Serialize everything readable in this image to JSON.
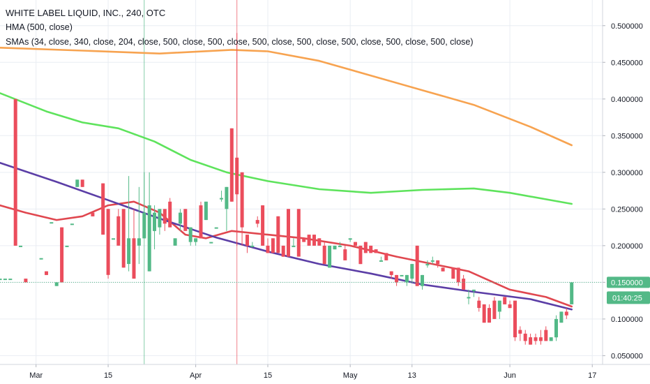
{
  "header": {
    "title": "WHITE LABEL LIQUID, INC., 240, OTC",
    "hma_label": "HMA (500, close)",
    "smas_label": "SMAs (34, close, 340, close, 204, close, 500, close, 500, close, 500, close, 500, close, 500, close, 500, close, 500, close)"
  },
  "colors": {
    "up": "#53b987",
    "down": "#eb4d5c",
    "sma_orange": "#f7a350",
    "sma_green": "#5ee35c",
    "sma_red": "#e0474f",
    "hma_purple": "#5b3ea6",
    "price_line": "#53b987",
    "grid": "#e9edf3"
  },
  "chart_data": {
    "type": "candlestick",
    "y_axis": {
      "ticks": [
        "0.500000",
        "0.450000",
        "0.400000",
        "0.350000",
        "0.300000",
        "0.250000",
        "0.200000",
        "0.150000",
        "0.100000",
        "0.050000"
      ],
      "tick_values": [
        0.5,
        0.45,
        0.4,
        0.35,
        0.3,
        0.25,
        0.2,
        0.15,
        0.1,
        0.05
      ],
      "range": [
        0.038,
        0.535
      ]
    },
    "x_axis": {
      "ticks": [
        "Mar",
        "15",
        "Apr",
        "15",
        "May",
        "13",
        "Jun",
        "17"
      ],
      "range": [
        "Feb 23",
        "Jun 19"
      ]
    },
    "last_price": {
      "value": 0.15,
      "label": "0.150000",
      "countdown": "01:40:25"
    },
    "candles": [
      {
        "d": "Feb 23",
        "o": 0.155,
        "h": 0.155,
        "l": 0.155,
        "c": 0.155
      },
      {
        "d": "Feb 24",
        "o": 0.155,
        "h": 0.155,
        "l": 0.155,
        "c": 0.155
      },
      {
        "d": "Feb 25",
        "o": 0.155,
        "h": 0.155,
        "l": 0.155,
        "c": 0.155
      },
      {
        "d": "Feb 26",
        "o": 0.4,
        "h": 0.4,
        "l": 0.2,
        "c": 0.2
      },
      {
        "d": "Feb 27",
        "o": 0.2,
        "h": 0.2,
        "l": 0.2,
        "c": 0.2
      },
      {
        "d": "Feb 28",
        "o": 0.155,
        "h": 0.155,
        "l": 0.15,
        "c": 0.15
      },
      {
        "d": "Mar 2",
        "o": 0.183,
        "h": 0.183,
        "l": 0.183,
        "c": 0.183
      },
      {
        "d": "Mar 3",
        "o": 0.165,
        "h": 0.165,
        "l": 0.16,
        "c": 0.16
      },
      {
        "d": "Mar 4",
        "o": 0.232,
        "h": 0.232,
        "l": 0.232,
        "c": 0.232
      },
      {
        "d": "Mar 5",
        "o": 0.145,
        "h": 0.15,
        "l": 0.145,
        "c": 0.15
      },
      {
        "d": "Mar 6",
        "o": 0.225,
        "h": 0.225,
        "l": 0.15,
        "c": 0.15
      },
      {
        "d": "Mar 7",
        "o": 0.2,
        "h": 0.2,
        "l": 0.2,
        "c": 0.2
      },
      {
        "d": "Mar 8",
        "o": 0.23,
        "h": 0.23,
        "l": 0.23,
        "c": 0.23
      },
      {
        "d": "Mar 9",
        "o": 0.28,
        "h": 0.29,
        "l": 0.28,
        "c": 0.29
      },
      {
        "d": "Mar 10",
        "o": 0.29,
        "h": 0.29,
        "l": 0.28,
        "c": 0.28
      },
      {
        "d": "Mar 12",
        "o": 0.245,
        "h": 0.245,
        "l": 0.24,
        "c": 0.24
      },
      {
        "d": "Mar 14",
        "o": 0.285,
        "h": 0.285,
        "l": 0.215,
        "c": 0.215
      },
      {
        "d": "Mar 15",
        "o": 0.25,
        "h": 0.25,
        "l": 0.155,
        "c": 0.16
      },
      {
        "d": "Mar 16",
        "o": 0.21,
        "h": 0.21,
        "l": 0.21,
        "c": 0.21
      },
      {
        "d": "Mar 17",
        "o": 0.24,
        "h": 0.25,
        "l": 0.2,
        "c": 0.2
      },
      {
        "d": "Mar 18",
        "o": 0.25,
        "h": 0.25,
        "l": 0.17,
        "c": 0.17
      },
      {
        "d": "Mar 19",
        "o": 0.175,
        "h": 0.295,
        "l": 0.165,
        "c": 0.21
      },
      {
        "d": "Mar 20",
        "o": 0.21,
        "h": 0.25,
        "l": 0.155,
        "c": 0.155
      },
      {
        "d": "Mar 21",
        "o": 0.2,
        "h": 0.28,
        "l": 0.175,
        "c": 0.21
      },
      {
        "d": "Mar 22",
        "o": 0.21,
        "h": 0.3,
        "l": 0.21,
        "c": 0.245
      },
      {
        "d": "Mar 23",
        "o": 0.165,
        "h": 0.3,
        "l": 0.165,
        "c": 0.255
      },
      {
        "d": "Mar 24",
        "o": 0.22,
        "h": 0.255,
        "l": 0.195,
        "c": 0.245
      },
      {
        "d": "Mar 25",
        "o": 0.225,
        "h": 0.25,
        "l": 0.215,
        "c": 0.25
      },
      {
        "d": "Mar 26",
        "o": 0.25,
        "h": 0.25,
        "l": 0.22,
        "c": 0.23
      },
      {
        "d": "Mar 27",
        "o": 0.26,
        "h": 0.265,
        "l": 0.225,
        "c": 0.225
      },
      {
        "d": "Mar 28",
        "o": 0.2,
        "h": 0.21,
        "l": 0.2,
        "c": 0.21
      },
      {
        "d": "Mar 29",
        "o": 0.23,
        "h": 0.25,
        "l": 0.22,
        "c": 0.245
      },
      {
        "d": "Mar 30",
        "o": 0.25,
        "h": 0.25,
        "l": 0.22,
        "c": 0.22
      },
      {
        "d": "Mar 31",
        "o": 0.205,
        "h": 0.225,
        "l": 0.2,
        "c": 0.225
      },
      {
        "d": "Apr 1",
        "o": 0.205,
        "h": 0.21,
        "l": 0.2,
        "c": 0.21
      },
      {
        "d": "Apr 2",
        "o": 0.255,
        "h": 0.26,
        "l": 0.21,
        "c": 0.21
      },
      {
        "d": "Apr 3",
        "o": 0.235,
        "h": 0.26,
        "l": 0.235,
        "c": 0.26
      },
      {
        "d": "Apr 4",
        "o": 0.205,
        "h": 0.205,
        "l": 0.205,
        "c": 0.205
      },
      {
        "d": "Apr 5",
        "o": 0.225,
        "h": 0.225,
        "l": 0.225,
        "c": 0.225
      },
      {
        "d": "Apr 6",
        "o": 0.265,
        "h": 0.275,
        "l": 0.26,
        "c": 0.265
      },
      {
        "d": "Apr 7",
        "o": 0.25,
        "h": 0.28,
        "l": 0.22,
        "c": 0.28
      },
      {
        "d": "Apr 8",
        "o": 0.36,
        "h": 0.36,
        "l": 0.26,
        "c": 0.26
      },
      {
        "d": "Apr 9",
        "o": 0.32,
        "h": 0.49,
        "l": 0.2,
        "c": 0.27
      },
      {
        "d": "Apr 10",
        "o": 0.3,
        "h": 0.3,
        "l": 0.2,
        "c": 0.225
      },
      {
        "d": "Apr 11",
        "o": 0.215,
        "h": 0.215,
        "l": 0.19,
        "c": 0.2
      },
      {
        "d": "Apr 12",
        "o": 0.2,
        "h": 0.205,
        "l": 0.2,
        "c": 0.2
      },
      {
        "d": "Apr 13",
        "o": 0.235,
        "h": 0.24,
        "l": 0.225,
        "c": 0.23
      },
      {
        "d": "Apr 14",
        "o": 0.255,
        "h": 0.255,
        "l": 0.2,
        "c": 0.2
      },
      {
        "d": "Apr 15",
        "o": 0.2,
        "h": 0.21,
        "l": 0.19,
        "c": 0.19
      },
      {
        "d": "Apr 16",
        "o": 0.21,
        "h": 0.21,
        "l": 0.19,
        "c": 0.19
      },
      {
        "d": "Apr 17",
        "o": 0.24,
        "h": 0.24,
        "l": 0.19,
        "c": 0.19
      },
      {
        "d": "Apr 18",
        "o": 0.2,
        "h": 0.2,
        "l": 0.185,
        "c": 0.185
      },
      {
        "d": "Apr 19",
        "o": 0.25,
        "h": 0.25,
        "l": 0.185,
        "c": 0.185
      },
      {
        "d": "Apr 20",
        "o": 0.2,
        "h": 0.21,
        "l": 0.2,
        "c": 0.2
      },
      {
        "d": "Apr 21",
        "o": 0.25,
        "h": 0.25,
        "l": 0.185,
        "c": 0.185
      },
      {
        "d": "Apr 22",
        "o": 0.21,
        "h": 0.21,
        "l": 0.205,
        "c": 0.205
      },
      {
        "d": "Apr 23",
        "o": 0.215,
        "h": 0.215,
        "l": 0.2,
        "c": 0.2
      },
      {
        "d": "Apr 24",
        "o": 0.215,
        "h": 0.215,
        "l": 0.2,
        "c": 0.2
      },
      {
        "d": "Apr 25",
        "o": 0.21,
        "h": 0.21,
        "l": 0.2,
        "c": 0.2
      },
      {
        "d": "Apr 26",
        "o": 0.2,
        "h": 0.205,
        "l": 0.175,
        "c": 0.175
      },
      {
        "d": "Apr 27",
        "o": 0.17,
        "h": 0.2,
        "l": 0.17,
        "c": 0.2
      },
      {
        "d": "Apr 28",
        "o": 0.195,
        "h": 0.2,
        "l": 0.195,
        "c": 0.2
      },
      {
        "d": "Apr 29",
        "o": 0.2,
        "h": 0.205,
        "l": 0.2,
        "c": 0.2
      },
      {
        "d": "Apr 30",
        "o": 0.195,
        "h": 0.2,
        "l": 0.18,
        "c": 0.18
      },
      {
        "d": "May 1",
        "o": 0.21,
        "h": 0.21,
        "l": 0.205,
        "c": 0.21
      },
      {
        "d": "May 2",
        "o": 0.205,
        "h": 0.205,
        "l": 0.2,
        "c": 0.2
      },
      {
        "d": "May 3",
        "o": 0.2,
        "h": 0.2,
        "l": 0.175,
        "c": 0.175
      },
      {
        "d": "May 4",
        "o": 0.205,
        "h": 0.205,
        "l": 0.19,
        "c": 0.19
      },
      {
        "d": "May 5",
        "o": 0.2,
        "h": 0.2,
        "l": 0.19,
        "c": 0.19
      },
      {
        "d": "May 6",
        "o": 0.195,
        "h": 0.195,
        "l": 0.19,
        "c": 0.19
      },
      {
        "d": "May 7",
        "o": 0.18,
        "h": 0.185,
        "l": 0.18,
        "c": 0.18
      },
      {
        "d": "May 8",
        "o": 0.19,
        "h": 0.19,
        "l": 0.18,
        "c": 0.18
      },
      {
        "d": "May 9",
        "o": 0.165,
        "h": 0.165,
        "l": 0.155,
        "c": 0.16
      },
      {
        "d": "May 10",
        "o": 0.16,
        "h": 0.16,
        "l": 0.145,
        "c": 0.15
      },
      {
        "d": "May 11",
        "o": 0.16,
        "h": 0.16,
        "l": 0.16,
        "c": 0.16
      },
      {
        "d": "May 12",
        "o": 0.15,
        "h": 0.16,
        "l": 0.145,
        "c": 0.16
      },
      {
        "d": "May 13",
        "o": 0.155,
        "h": 0.175,
        "l": 0.15,
        "c": 0.175
      },
      {
        "d": "May 14",
        "o": 0.2,
        "h": 0.2,
        "l": 0.145,
        "c": 0.145
      },
      {
        "d": "May 15",
        "o": 0.145,
        "h": 0.16,
        "l": 0.14,
        "c": 0.16
      },
      {
        "d": "May 16",
        "o": 0.175,
        "h": 0.18,
        "l": 0.17,
        "c": 0.175
      },
      {
        "d": "May 17",
        "o": 0.18,
        "h": 0.185,
        "l": 0.175,
        "c": 0.18
      },
      {
        "d": "May 18",
        "o": 0.18,
        "h": 0.18,
        "l": 0.17,
        "c": 0.175
      },
      {
        "d": "May 19",
        "o": 0.17,
        "h": 0.17,
        "l": 0.165,
        "c": 0.165
      },
      {
        "d": "May 21",
        "o": 0.17,
        "h": 0.17,
        "l": 0.155,
        "c": 0.155
      },
      {
        "d": "May 22",
        "o": 0.17,
        "h": 0.17,
        "l": 0.145,
        "c": 0.15
      },
      {
        "d": "May 23",
        "o": 0.155,
        "h": 0.16,
        "l": 0.14,
        "c": 0.14
      },
      {
        "d": "May 24",
        "o": 0.13,
        "h": 0.14,
        "l": 0.12,
        "c": 0.13
      },
      {
        "d": "May 25",
        "o": 0.14,
        "h": 0.14,
        "l": 0.13,
        "c": 0.14
      },
      {
        "d": "May 26",
        "o": 0.125,
        "h": 0.13,
        "l": 0.11,
        "c": 0.115
      },
      {
        "d": "May 27",
        "o": 0.12,
        "h": 0.12,
        "l": 0.095,
        "c": 0.095
      },
      {
        "d": "May 28",
        "o": 0.115,
        "h": 0.12,
        "l": 0.095,
        "c": 0.095
      },
      {
        "d": "May 29",
        "o": 0.125,
        "h": 0.13,
        "l": 0.1,
        "c": 0.1
      },
      {
        "d": "May 30",
        "o": 0.11,
        "h": 0.125,
        "l": 0.1,
        "c": 0.125
      },
      {
        "d": "May 31",
        "o": 0.13,
        "h": 0.13,
        "l": 0.12,
        "c": 0.12
      },
      {
        "d": "Jun 1",
        "o": 0.12,
        "h": 0.125,
        "l": 0.115,
        "c": 0.115
      },
      {
        "d": "Jun 2",
        "o": 0.125,
        "h": 0.125,
        "l": 0.07,
        "c": 0.075
      },
      {
        "d": "Jun 3",
        "o": 0.085,
        "h": 0.09,
        "l": 0.07,
        "c": 0.08
      },
      {
        "d": "Jun 4",
        "o": 0.08,
        "h": 0.085,
        "l": 0.065,
        "c": 0.07
      },
      {
        "d": "Jun 5",
        "o": 0.075,
        "h": 0.08,
        "l": 0.065,
        "c": 0.065
      },
      {
        "d": "Jun 6",
        "o": 0.075,
        "h": 0.08,
        "l": 0.065,
        "c": 0.07
      },
      {
        "d": "Jun 7",
        "o": 0.075,
        "h": 0.085,
        "l": 0.065,
        "c": 0.07
      },
      {
        "d": "Jun 8",
        "o": 0.085,
        "h": 0.09,
        "l": 0.07,
        "c": 0.07
      },
      {
        "d": "Jun 9",
        "o": 0.07,
        "h": 0.075,
        "l": 0.07,
        "c": 0.075
      },
      {
        "d": "Jun 10",
        "o": 0.075,
        "h": 0.105,
        "l": 0.07,
        "c": 0.1
      },
      {
        "d": "Jun 11",
        "o": 0.095,
        "h": 0.11,
        "l": 0.095,
        "c": 0.11
      },
      {
        "d": "Jun 12",
        "o": 0.11,
        "h": 0.115,
        "l": 0.1,
        "c": 0.105
      },
      {
        "d": "Jun 13",
        "o": 0.12,
        "h": 0.15,
        "l": 0.12,
        "c": 0.15
      }
    ],
    "series": [
      {
        "color_key": "sma_orange",
        "points": [
          [
            "Feb 23",
            0.47
          ],
          [
            "Mar 10",
            0.466
          ],
          [
            "Mar 25",
            0.462
          ],
          [
            "Apr 8",
            0.467
          ],
          [
            "Apr 15",
            0.465
          ],
          [
            "Apr 25",
            0.452
          ],
          [
            "May 5",
            0.432
          ],
          [
            "May 15",
            0.412
          ],
          [
            "May 25",
            0.392
          ],
          [
            "Jun 5",
            0.362
          ],
          [
            "Jun 13",
            0.337
          ]
        ]
      },
      {
        "color_key": "sma_green",
        "points": [
          [
            "Feb 23",
            0.408
          ],
          [
            "Mar 3",
            0.383
          ],
          [
            "Mar 10",
            0.368
          ],
          [
            "Mar 17",
            0.36
          ],
          [
            "Mar 24",
            0.342
          ],
          [
            "Mar 31",
            0.317
          ],
          [
            "Apr 7",
            0.3
          ],
          [
            "Apr 15",
            0.288
          ],
          [
            "Apr 25",
            0.277
          ],
          [
            "May 5",
            0.272
          ],
          [
            "May 15",
            0.276
          ],
          [
            "May 25",
            0.278
          ],
          [
            "Jun 1",
            0.272
          ],
          [
            "Jun 13",
            0.257
          ]
        ]
      },
      {
        "color_key": "sma_red",
        "points": [
          [
            "Feb 23",
            0.255
          ],
          [
            "Feb 28",
            0.245
          ],
          [
            "Mar 5",
            0.235
          ],
          [
            "Mar 10",
            0.24
          ],
          [
            "Mar 15",
            0.255
          ],
          [
            "Mar 20",
            0.26
          ],
          [
            "Mar 25",
            0.245
          ],
          [
            "Mar 30",
            0.215
          ],
          [
            "Apr 3",
            0.21
          ],
          [
            "Apr 8",
            0.22
          ],
          [
            "Apr 15",
            0.215
          ],
          [
            "Apr 22",
            0.21
          ],
          [
            "May 1",
            0.2
          ],
          [
            "May 10",
            0.185
          ],
          [
            "May 17",
            0.175
          ],
          [
            "May 24",
            0.165
          ],
          [
            "Jun 1",
            0.14
          ],
          [
            "Jun 8",
            0.13
          ],
          [
            "Jun 13",
            0.117
          ]
        ]
      },
      {
        "color_key": "hma_purple",
        "points": [
          [
            "Feb 23",
            0.313
          ],
          [
            "Mar 5",
            0.287
          ],
          [
            "Mar 15",
            0.262
          ],
          [
            "Mar 25",
            0.237
          ],
          [
            "Apr 5",
            0.211
          ],
          [
            "Apr 15",
            0.192
          ],
          [
            "Apr 25",
            0.175
          ],
          [
            "May 5",
            0.162
          ],
          [
            "May 15",
            0.147
          ],
          [
            "May 25",
            0.137
          ],
          [
            "Jun 5",
            0.127
          ],
          [
            "Jun 13",
            0.113
          ]
        ]
      }
    ],
    "vertical_lines": [
      {
        "d": "Mar 22",
        "color_key": "up"
      },
      {
        "d": "Apr 9",
        "color_key": "down"
      }
    ]
  }
}
